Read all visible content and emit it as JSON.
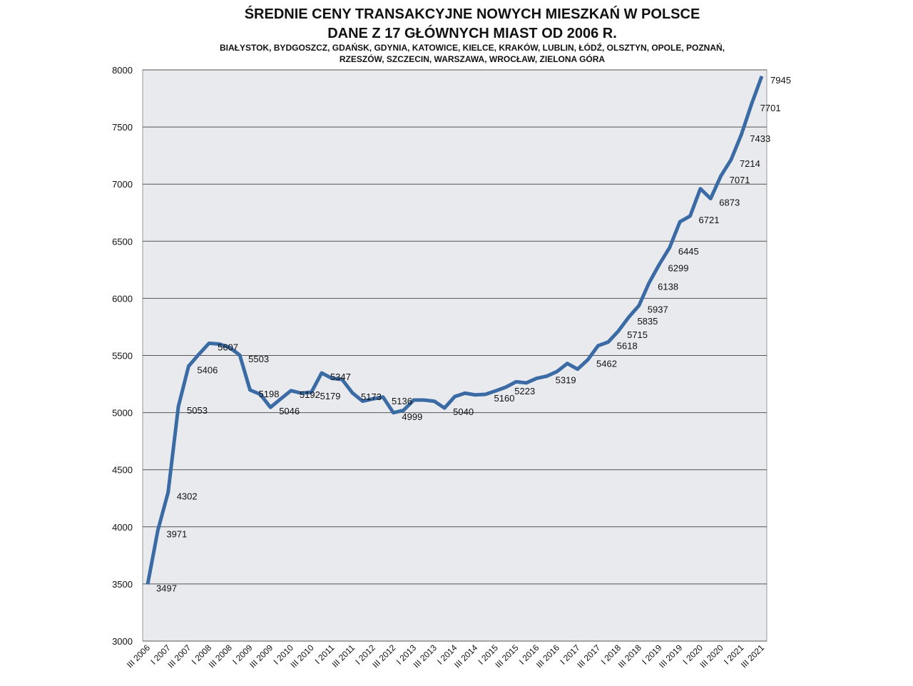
{
  "chart_data": {
    "type": "line",
    "title": [
      "ŚREDNIE CENY TRANSAKCYJNE NOWYCH MIESZKAŃ W POLSCE",
      "DANE Z 17 GŁÓWNYCH  MIAST OD 2006 R."
    ],
    "subtitle": [
      "BIAŁYSTOK, BYDGOSZCZ, GDAŃSK, GDYNIA, KATOWICE, KIELCE, KRAKÓW, LUBLIN, ŁÓDŹ, OLSZTYN, OPOLE, POZNAŃ,",
      "RZESZÓW, SZCZECIN, WARSZAWA,  WROCŁAW, ZIELONA GÓRA"
    ],
    "categories": [
      "III 2006",
      null,
      "I 2007",
      null,
      "III 2007",
      null,
      "I 2008",
      null,
      "III 2008",
      null,
      "I 2009",
      null,
      "III 2009",
      null,
      "I 2010",
      null,
      "III 2010",
      null,
      "I 2011",
      null,
      "III 2011",
      null,
      "I 2012",
      null,
      "III 2012",
      null,
      "I 2013",
      null,
      "III 2013",
      null,
      "I 2014",
      null,
      "III 2014",
      null,
      "I 2015",
      null,
      "III 2015",
      null,
      "I 2016",
      null,
      "III 2016",
      null,
      "I 2017",
      null,
      "III 2017",
      null,
      "I 2018",
      null,
      "III 2018",
      null,
      "I 2019",
      null,
      "III 2019",
      null,
      "I 2020",
      null,
      "III 2020",
      null,
      "I 2021",
      null,
      "III 2021"
    ],
    "series": [
      {
        "color": "#3b6ba5",
        "values": [
          3497,
          3971,
          4302,
          5053,
          5406,
          5510,
          5607,
          5600,
          5570,
          5503,
          5198,
          5160,
          5046,
          5120,
          5192,
          5170,
          5179,
          5347,
          5300,
          5290,
          5173,
          5100,
          5120,
          5136,
          4999,
          5020,
          5110,
          5110,
          5100,
          5040,
          5140,
          5170,
          5155,
          5160,
          5190,
          5223,
          5270,
          5260,
          5300,
          5319,
          5360,
          5430,
          5380,
          5462,
          5585,
          5618,
          5715,
          5835,
          5937,
          6138,
          6299,
          6445,
          6670,
          6721,
          6960,
          6873,
          7071,
          7214,
          7433,
          7701,
          7945
        ],
        "value_labels": [
          "3497",
          "3971",
          "4302",
          "5053",
          "5406",
          null,
          "5607",
          null,
          null,
          "5503",
          "5198",
          null,
          "5046",
          null,
          "5192",
          null,
          "5179",
          "5347",
          null,
          null,
          "5173",
          null,
          null,
          "5136",
          "4999",
          null,
          null,
          null,
          null,
          "5040",
          null,
          null,
          null,
          "5160",
          null,
          "5223",
          null,
          null,
          null,
          "5319",
          null,
          null,
          null,
          "5462",
          null,
          "5618",
          "5715",
          "5835",
          "5937",
          "6138",
          "6299",
          "6445",
          null,
          "6721",
          null,
          "6873",
          "7071",
          "7214",
          "7433",
          "7701",
          "7945"
        ]
      }
    ],
    "ylim": [
      3000,
      8000
    ],
    "yticks": [
      3000,
      3500,
      4000,
      4500,
      5000,
      5500,
      6000,
      6500,
      7000,
      7500,
      8000
    ],
    "grid": true
  }
}
